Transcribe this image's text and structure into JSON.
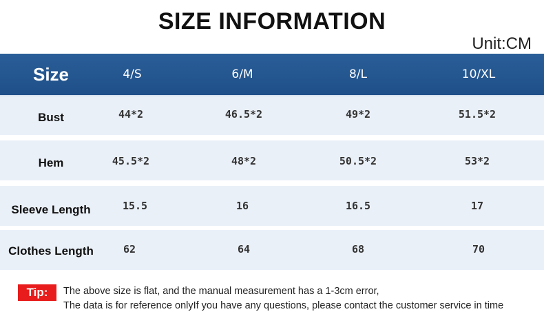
{
  "title": "SIZE INFORMATION",
  "unit": "Unit:CM",
  "table": {
    "header": [
      "Size",
      "4/S",
      "6/M",
      "8/L",
      "10/XL"
    ],
    "rows": [
      {
        "label": "Bust",
        "values": [
          "44*2",
          "46.5*2",
          "49*2",
          "51.5*2"
        ]
      },
      {
        "label": "Hem",
        "values": [
          "45.5*2",
          "48*2",
          "50.5*2",
          "53*2"
        ]
      },
      {
        "label": "Sleeve Length",
        "values": [
          "15.5",
          "16",
          "16.5",
          "17"
        ]
      },
      {
        "label": "Clothes Length",
        "values": [
          "62",
          "64",
          "68",
          "70"
        ]
      }
    ]
  },
  "tip": {
    "badge": "Tip:",
    "line1": "The above size is flat, and the manual measurement has a 1-3cm error,",
    "line2": "The data is for reference onlyIf you have any questions, please contact the customer service in time"
  },
  "colors": {
    "header_bg": "#1f4f88",
    "row_bg": "#eaf0f8",
    "tip_badge": "#e81c1c"
  }
}
